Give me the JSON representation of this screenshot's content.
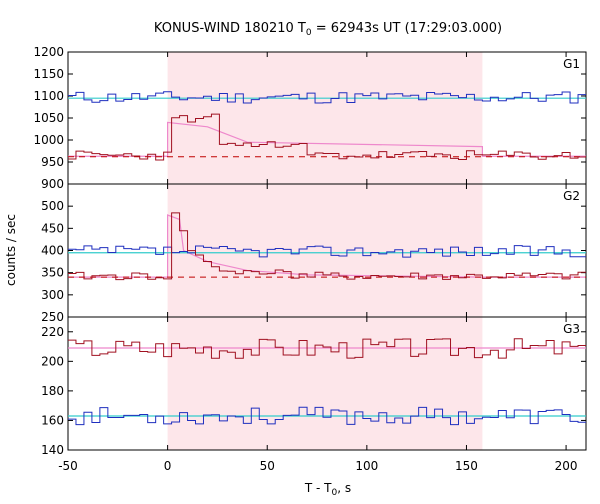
{
  "chart_data": {
    "type": "line",
    "title": "KONUS-WIND 180210 T",
    "title_sub": "0",
    "title_rest": " = 62943s UT (17:29:03.000)",
    "xlabel": "T - T",
    "xlabel_sub": "0",
    "xlabel_rest": ", s",
    "ylabel": "counts / sec",
    "xlim": [
      -50,
      210
    ],
    "x_ticks": [
      "-50",
      "0",
      "50",
      "100",
      "150",
      "200"
    ],
    "highlight_interval": [
      0,
      158
    ],
    "colors": {
      "series_a": "#1f2fbf",
      "series_b": "#a01020",
      "fit_a": "#33cccc",
      "fit_b": "#ee88cc",
      "dashed": "#c00000",
      "highlight": "#fde6ea"
    },
    "panels": [
      {
        "label": "G1",
        "ylim": [
          900,
          1200
        ],
        "y_ticks": [
          "900",
          "950",
          "1000",
          "1050",
          "1100",
          "1150",
          "1200"
        ],
        "baseline_blue": 1095,
        "dashed_level": 962,
        "blue_mean": 1097,
        "blue_amp": 14,
        "blue_seed": 11,
        "red_mean": 965,
        "red_amp": 11,
        "red_seed": 23,
        "pulse": [
          {
            "x": 0,
            "v": 1048
          },
          {
            "x": 5,
            "v": 1052
          },
          {
            "x": 10,
            "v": 1043
          },
          {
            "x": 15,
            "v": 1055
          },
          {
            "x": 20,
            "v": 1060
          }
        ],
        "mid_level": 990,
        "mid_range": [
          20,
          70
        ],
        "fit_red": [
          [
            -50,
            963
          ],
          [
            0,
            963
          ],
          [
            0,
            1040
          ],
          [
            20,
            1030
          ],
          [
            40,
            995
          ],
          [
            158,
            985
          ],
          [
            158,
            963
          ],
          [
            210,
            963
          ]
        ]
      },
      {
        "label": "G2",
        "ylim": [
          250,
          550
        ],
        "y_ticks": [
          "250",
          "300",
          "350",
          "400",
          "450",
          "500"
        ],
        "baseline_blue": 395,
        "dashed_level": 340,
        "blue_mean": 398,
        "blue_amp": 13,
        "blue_seed": 37,
        "red_mean": 342,
        "red_amp": 9,
        "red_seed": 41,
        "pulse": [
          {
            "x": 0,
            "v": 487
          },
          {
            "x": 3,
            "v": 478
          },
          {
            "x": 6,
            "v": 442
          },
          {
            "x": 9,
            "v": 400
          },
          {
            "x": 12,
            "v": 388
          },
          {
            "x": 15,
            "v": 380
          },
          {
            "x": 18,
            "v": 372
          },
          {
            "x": 21,
            "v": 365
          },
          {
            "x": 24,
            "v": 355
          }
        ],
        "mid_level": 352,
        "mid_range": [
          24,
          60
        ],
        "fit_red": [
          [
            -50,
            340
          ],
          [
            0,
            340
          ],
          [
            0,
            480
          ],
          [
            6,
            470
          ],
          [
            8,
            400
          ],
          [
            20,
            375
          ],
          [
            40,
            355
          ],
          [
            70,
            345
          ],
          [
            158,
            340
          ],
          [
            210,
            340
          ]
        ]
      },
      {
        "label": "G3",
        "ylim": [
          140,
          230
        ],
        "y_ticks": [
          "140",
          "160",
          "180",
          "200",
          "220"
        ],
        "baseline_blue": 163,
        "baseline_red": 209,
        "blue_mean": 163,
        "blue_amp": 6,
        "blue_seed": 53,
        "red_mean": 209,
        "red_amp": 7,
        "red_seed": 67
      }
    ]
  }
}
